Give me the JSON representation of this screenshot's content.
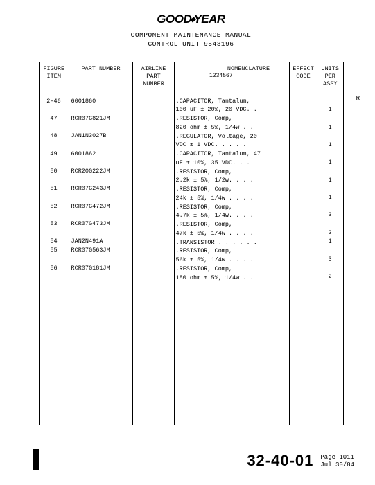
{
  "brand": {
    "left": "GOOD",
    "right": "YEAR"
  },
  "title1": "COMPONENT MAINTENANCE MANUAL",
  "title2": "CONTROL UNIT 9543196",
  "columns": {
    "figure": "FIGURE\nITEM",
    "part": "PART NUMBER",
    "airline": "AIRLINE\nPART\nNUMBER",
    "nomen": "NOMENCLATURE",
    "nomen_sub": "1234567",
    "effect": "EFFECT\nCODE",
    "units": "UNITS\nPER\nASSY"
  },
  "rows": [
    {
      "fig": "2-46",
      "part": "6001860",
      "nomen": ".CAPACITOR, Tantalum,\n  100 uF ± 20%, 20 VDC. .",
      "units": "1"
    },
    {
      "fig": "47",
      "part": "RCR07G821JM",
      "nomen": ".RESISTOR, Comp,\n  820 ohm ± 5%, 1/4w . .",
      "units": "1"
    },
    {
      "fig": "48",
      "part": "JAN1N3027B",
      "nomen": ".REGULATOR, Voltage, 20\n  VDC ± 1 VDC. . . . .",
      "units": "1"
    },
    {
      "fig": "49",
      "part": "6001862",
      "nomen": ".CAPACITOR, Tantalum, 47\n  uF ± 10%, 35 VDC. . .",
      "units": "1"
    },
    {
      "fig": "50",
      "part": "RCR20G222JM",
      "nomen": ".RESISTOR, Comp,\n  2.2k ± 5%, 1/2w. . . .",
      "units": "1"
    },
    {
      "fig": "51",
      "part": "RCR07G243JM",
      "nomen": ".RESISTOR, Comp,\n  24k ± 5%, 1/4w . . . .",
      "units": "1"
    },
    {
      "fig": "52",
      "part": "RCR07G472JM",
      "nomen": ".RESISTOR, Comp,\n  4.7k ± 5%, 1/4w. . . .",
      "units": "3"
    },
    {
      "fig": "53",
      "part": "RCR07G473JM",
      "nomen": ".RESISTOR, Comp,\n  47k ± 5%, 1/4w . . . .",
      "units": "2"
    },
    {
      "fig": "54",
      "part": "JAN2N491A",
      "nomen": ".TRANSISTOR . . . . . .",
      "units": "1"
    },
    {
      "fig": "55",
      "part": "RCR07G563JM",
      "nomen": ".RESISTOR, Comp,\n  56k ± 5%, 1/4w . . . .",
      "units": "3"
    },
    {
      "fig": "56",
      "part": "RCR07G181JM",
      "nomen": ".RESISTOR, Comp,\n  180 ohm ± 5%, 1/4w . .",
      "units": "2"
    }
  ],
  "sidemark": "R",
  "footer": {
    "section": "32-40-01",
    "page": "Page 1011",
    "date": "Jul 30/84"
  },
  "colwidths": {
    "fig": 43,
    "part": 92,
    "air": 60,
    "nom": 168,
    "eff": 40,
    "units": 37
  }
}
